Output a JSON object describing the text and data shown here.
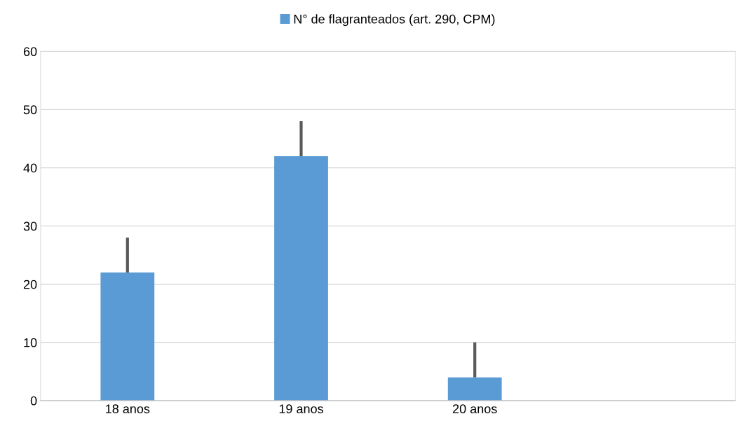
{
  "chart_data": {
    "type": "bar",
    "categories": [
      "18 anos",
      "19 anos",
      "20 anos",
      null
    ],
    "series": [
      {
        "name": "N° de flagranteados (art. 290, CPM)",
        "color": "#5b9bd5",
        "values": [
          22,
          42,
          4,
          null
        ],
        "errors": [
          [
            22,
            28
          ],
          [
            42,
            48
          ],
          [
            4,
            10
          ],
          null
        ]
      }
    ],
    "ylim": [
      0,
      60
    ],
    "yticks": [
      0,
      10,
      20,
      30,
      40,
      50,
      60
    ],
    "grid": "y",
    "legend": "top"
  }
}
